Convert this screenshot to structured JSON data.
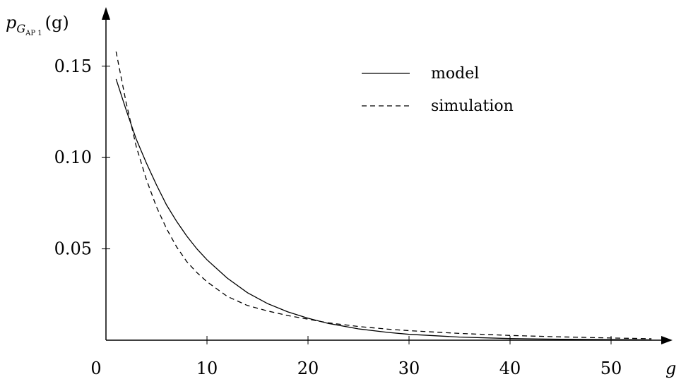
{
  "chart_data": {
    "type": "line",
    "title": "",
    "xlabel": "g",
    "ylabel": {
      "p": "p",
      "G": "G",
      "sub": "AP 1",
      "arg": "(g)"
    },
    "xlim": [
      0,
      55
    ],
    "ylim": [
      0,
      0.17
    ],
    "xticks": [
      {
        "value": 0,
        "label": "0"
      },
      {
        "value": 10,
        "label": "10"
      },
      {
        "value": 20,
        "label": "20"
      },
      {
        "value": 30,
        "label": "30"
      },
      {
        "value": 40,
        "label": "40"
      },
      {
        "value": 50,
        "label": "50"
      }
    ],
    "yticks": [
      {
        "value": 0.05,
        "label": "0.05"
      },
      {
        "value": 0.1,
        "label": "0.10"
      },
      {
        "value": 0.15,
        "label": "0.15"
      }
    ],
    "grid": false,
    "legend_position": "top-right",
    "series": [
      {
        "name": "model",
        "style": "solid",
        "color": "#000000",
        "x": [
          1,
          2,
          3,
          4,
          5,
          6,
          7,
          8,
          9,
          10,
          12,
          14,
          16,
          18,
          20,
          22,
          25,
          28,
          30,
          35,
          40,
          45,
          50,
          54
        ],
        "y": [
          0.143,
          0.126,
          0.11,
          0.097,
          0.085,
          0.074,
          0.065,
          0.057,
          0.05,
          0.044,
          0.034,
          0.026,
          0.02,
          0.0155,
          0.012,
          0.0092,
          0.0062,
          0.0042,
          0.0032,
          0.0017,
          0.0009,
          0.0005,
          0.0003,
          0.0002
        ]
      },
      {
        "name": "simulation",
        "style": "dashed",
        "color": "#000000",
        "x": [
          1,
          2,
          3,
          4,
          5,
          6,
          7,
          8,
          9,
          10,
          12,
          14,
          16,
          18,
          20,
          22,
          25,
          28,
          30,
          35,
          40,
          45,
          50,
          54
        ],
        "y": [
          0.158,
          0.13,
          0.106,
          0.088,
          0.073,
          0.061,
          0.051,
          0.043,
          0.037,
          0.032,
          0.024,
          0.019,
          0.016,
          0.0135,
          0.0115,
          0.0095,
          0.0075,
          0.006,
          0.0052,
          0.0037,
          0.0026,
          0.0018,
          0.0012,
          0.0008
        ]
      }
    ]
  }
}
